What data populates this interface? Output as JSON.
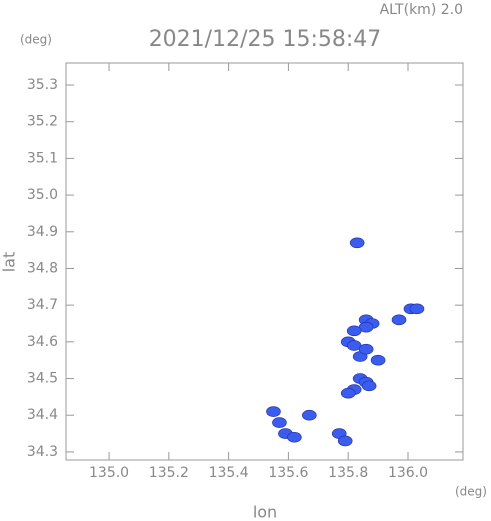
{
  "chart_data": {
    "type": "scatter",
    "title": "2021/12/25 15:58:47",
    "subtitle": "ALT(km) 2.0",
    "x_label": "lon",
    "y_label": "lat",
    "x_unit": "(deg)",
    "y_unit": "(deg)",
    "xlim": [
      134.856,
      136.184
    ],
    "ylim": [
      34.278,
      35.36
    ],
    "xticks": [
      {
        "value": 135,
        "label": "135.0"
      },
      135.2,
      135.4,
      135.6,
      135.8,
      {
        "value": 136,
        "label": "136.0"
      }
    ],
    "yticks": [
      34.3,
      34.4,
      34.5,
      34.6,
      34.7,
      34.8,
      34.9,
      {
        "value": 35,
        "label": "35.0"
      },
      35.1,
      35.2,
      35.3
    ],
    "color": "#3a5cf0",
    "x": [
      135.83,
      136.01,
      136.03,
      135.97,
      135.86,
      135.88,
      135.86,
      135.82,
      135.8,
      135.82,
      135.84,
      135.86,
      135.9,
      135.84,
      135.86,
      135.82,
      135.8,
      135.87,
      135.55,
      135.57,
      135.59,
      135.62,
      135.67,
      135.77,
      135.79
    ],
    "values": [
      34.87,
      34.69,
      34.69,
      34.66,
      34.66,
      34.65,
      34.64,
      34.63,
      34.6,
      34.59,
      34.56,
      34.58,
      34.55,
      34.5,
      34.49,
      34.47,
      34.46,
      34.48,
      34.41,
      34.38,
      34.35,
      34.34,
      34.4,
      34.35,
      34.33
    ]
  }
}
